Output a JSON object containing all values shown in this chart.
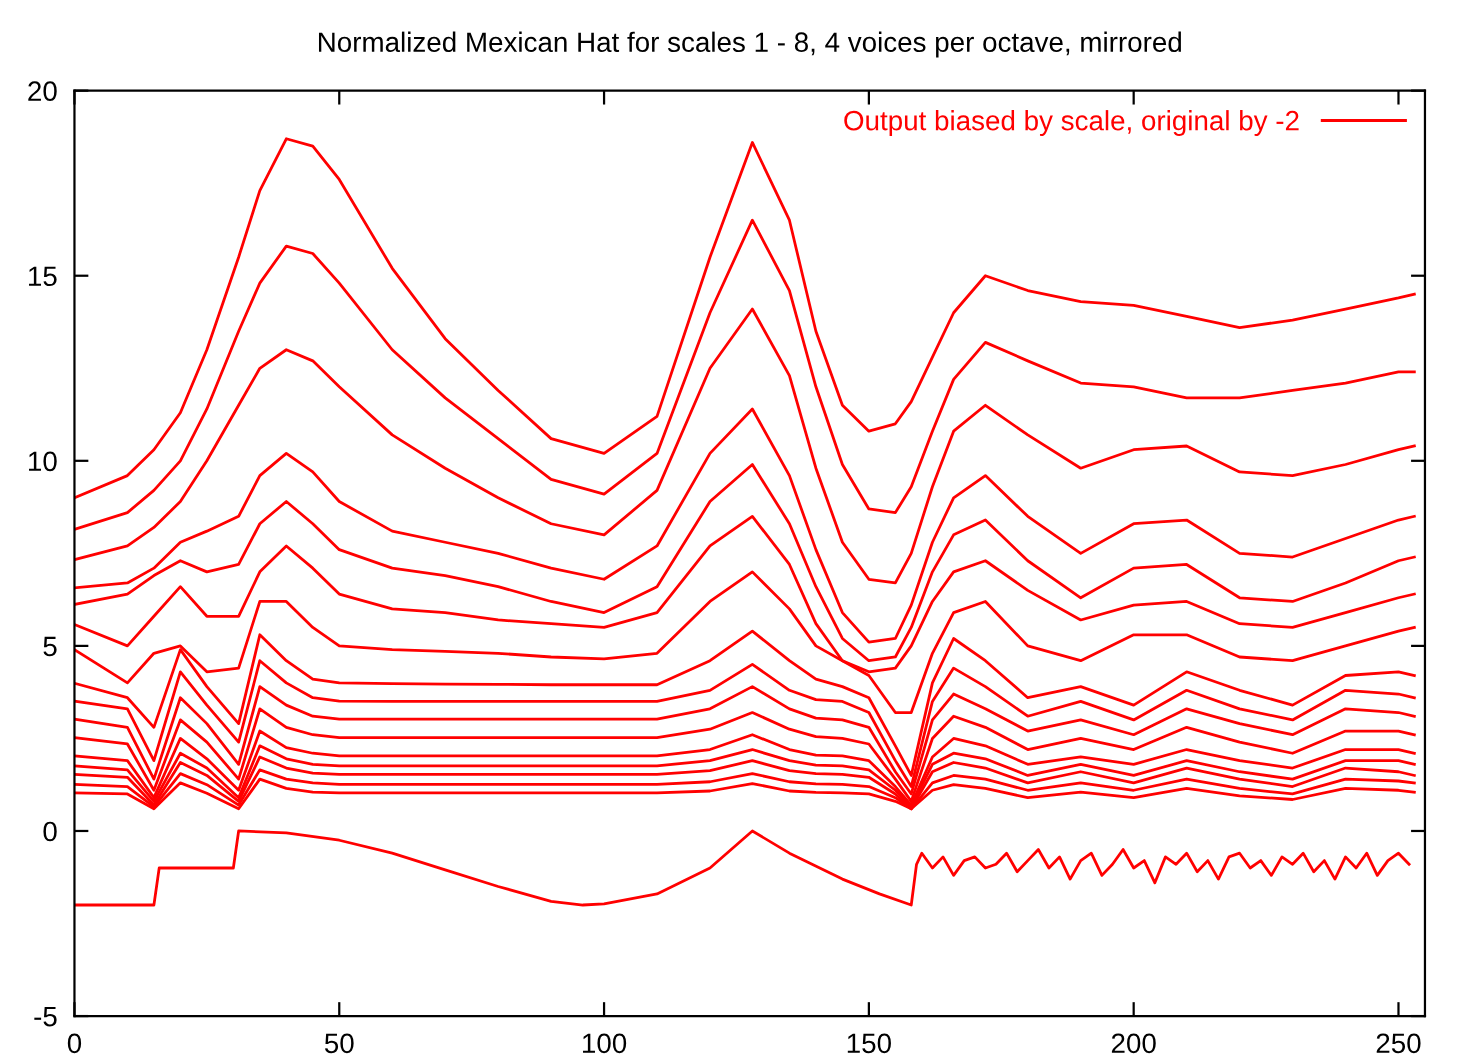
{
  "chart_data": {
    "type": "line",
    "title": "Normalized Mexican Hat for scales 1 - 8, 4 voices per octave, mirrored",
    "x": [
      0,
      10,
      15,
      20,
      25,
      31,
      35,
      40,
      45,
      50,
      60,
      70,
      80,
      90,
      100,
      110,
      120,
      128,
      135,
      140,
      145,
      150,
      155,
      158,
      162,
      166,
      172,
      180,
      190,
      200,
      210,
      220,
      230,
      240,
      250,
      253
    ],
    "xlim": [
      0,
      255
    ],
    "xticks": [
      0,
      50,
      100,
      150,
      200,
      250
    ],
    "ylim": [
      -5,
      20
    ],
    "yticks": [
      -5,
      0,
      5,
      10,
      15,
      20
    ],
    "grid": false,
    "legend": "top right",
    "line_style": "solid",
    "series": [
      {
        "name": "Output biased by scale, original by -2",
        "color": "#ff0000",
        "values": [
          9.0,
          9.6,
          10.3,
          11.3,
          13.0,
          15.5,
          17.3,
          18.7,
          18.5,
          17.6,
          15.2,
          13.3,
          11.9,
          10.6,
          10.2,
          11.2,
          15.5,
          18.6,
          16.5,
          13.5,
          11.5,
          10.8,
          11.0,
          11.6,
          12.8,
          14.0,
          15.0,
          14.6,
          14.3,
          14.2,
          13.9,
          13.6,
          13.8,
          14.1,
          14.4,
          14.5
        ]
      },
      {
        "color": "#ff0000",
        "values": [
          8.15,
          8.6,
          9.2,
          10.0,
          11.4,
          13.5,
          14.8,
          15.8,
          15.6,
          14.8,
          13.0,
          11.7,
          10.6,
          9.5,
          9.1,
          10.2,
          14.0,
          16.5,
          14.6,
          12.0,
          9.9,
          8.7,
          8.6,
          9.3,
          10.8,
          12.2,
          13.2,
          12.7,
          12.1,
          12.0,
          11.7,
          11.7,
          11.9,
          12.1,
          12.4,
          12.4
        ]
      },
      {
        "color": "#ff0000",
        "values": [
          7.33,
          7.7,
          8.2,
          8.9,
          10.0,
          11.5,
          12.5,
          13.0,
          12.7,
          12.0,
          10.7,
          9.8,
          9.0,
          8.3,
          8.0,
          9.2,
          12.5,
          14.1,
          12.3,
          9.8,
          7.8,
          6.8,
          6.7,
          7.5,
          9.3,
          10.8,
          11.5,
          10.7,
          9.8,
          10.3,
          10.4,
          9.7,
          9.6,
          9.9,
          10.3,
          10.4
        ]
      },
      {
        "color": "#ff0000",
        "values": [
          6.57,
          6.7,
          7.1,
          7.8,
          8.1,
          8.5,
          9.6,
          10.2,
          9.7,
          8.9,
          8.1,
          7.8,
          7.5,
          7.1,
          6.8,
          7.7,
          10.2,
          11.4,
          9.6,
          7.6,
          5.9,
          5.1,
          5.2,
          6.1,
          7.8,
          9.0,
          9.6,
          8.5,
          7.5,
          8.3,
          8.4,
          7.5,
          7.4,
          7.9,
          8.4,
          8.5
        ]
      },
      {
        "color": "#ff0000",
        "values": [
          6.12,
          6.4,
          6.9,
          7.3,
          7.0,
          7.2,
          8.3,
          8.9,
          8.3,
          7.6,
          7.1,
          6.9,
          6.6,
          6.2,
          5.9,
          6.6,
          8.9,
          9.9,
          8.3,
          6.6,
          5.2,
          4.6,
          4.7,
          5.5,
          7.0,
          8.0,
          8.4,
          7.3,
          6.3,
          7.1,
          7.2,
          6.3,
          6.2,
          6.7,
          7.3,
          7.4
        ]
      },
      {
        "color": "#ff0000",
        "values": [
          5.58,
          5.0,
          5.8,
          6.6,
          5.8,
          5.8,
          7.0,
          7.7,
          7.1,
          6.4,
          6.0,
          5.9,
          5.7,
          5.6,
          5.5,
          5.9,
          7.7,
          8.5,
          7.2,
          5.6,
          4.6,
          4.3,
          4.4,
          5.0,
          6.2,
          7.0,
          7.3,
          6.5,
          5.7,
          6.1,
          6.2,
          5.6,
          5.5,
          5.9,
          6.3,
          6.4
        ]
      },
      {
        "color": "#ff0000",
        "values": [
          4.9,
          4.0,
          4.8,
          5.0,
          4.3,
          4.4,
          6.2,
          6.2,
          5.5,
          5.0,
          4.9,
          4.85,
          4.8,
          4.7,
          4.65,
          4.8,
          6.2,
          7.0,
          6.0,
          5.0,
          4.6,
          4.2,
          3.2,
          3.2,
          4.8,
          5.9,
          6.2,
          5.0,
          4.6,
          5.3,
          5.3,
          4.7,
          4.6,
          5.0,
          5.4,
          5.5
        ]
      },
      {
        "color": "#ff0000",
        "values": [
          3.99,
          3.6,
          2.8,
          4.9,
          3.9,
          2.9,
          5.3,
          4.6,
          4.1,
          4.0,
          3.98,
          3.97,
          3.96,
          3.95,
          3.95,
          3.95,
          4.6,
          5.4,
          4.6,
          4.1,
          3.9,
          3.6,
          2.3,
          1.5,
          4.0,
          5.2,
          4.6,
          3.6,
          3.9,
          3.4,
          4.3,
          3.8,
          3.4,
          4.2,
          4.3,
          4.2
        ]
      },
      {
        "color": "#ff0000",
        "values": [
          3.51,
          3.3,
          1.9,
          4.3,
          3.4,
          2.4,
          4.6,
          4.0,
          3.6,
          3.51,
          3.5,
          3.5,
          3.5,
          3.5,
          3.5,
          3.5,
          3.8,
          4.5,
          3.8,
          3.55,
          3.5,
          3.2,
          1.9,
          1.2,
          3.5,
          4.4,
          3.9,
          3.1,
          3.5,
          3.0,
          3.8,
          3.3,
          3.0,
          3.8,
          3.7,
          3.6
        ]
      },
      {
        "color": "#ff0000",
        "values": [
          3.02,
          2.8,
          1.4,
          3.6,
          2.9,
          1.8,
          3.9,
          3.4,
          3.1,
          3.02,
          3.02,
          3.02,
          3.02,
          3.02,
          3.02,
          3.02,
          3.3,
          3.9,
          3.3,
          3.05,
          3.0,
          2.8,
          1.6,
          1.0,
          3.0,
          3.7,
          3.3,
          2.7,
          3.0,
          2.6,
          3.3,
          2.9,
          2.6,
          3.3,
          3.2,
          3.1
        ]
      },
      {
        "color": "#ff0000",
        "values": [
          2.52,
          2.35,
          1.1,
          3.0,
          2.4,
          1.4,
          3.3,
          2.8,
          2.6,
          2.52,
          2.52,
          2.52,
          2.52,
          2.52,
          2.52,
          2.52,
          2.75,
          3.2,
          2.75,
          2.55,
          2.5,
          2.35,
          1.4,
          0.8,
          2.5,
          3.1,
          2.8,
          2.2,
          2.5,
          2.2,
          2.8,
          2.4,
          2.1,
          2.7,
          2.7,
          2.6
        ]
      },
      {
        "color": "#ff0000",
        "values": [
          2.03,
          1.9,
          0.9,
          2.5,
          1.95,
          1.1,
          2.7,
          2.25,
          2.1,
          2.03,
          2.03,
          2.03,
          2.03,
          2.03,
          2.03,
          2.03,
          2.2,
          2.6,
          2.2,
          2.05,
          2.03,
          1.9,
          1.2,
          0.7,
          2.0,
          2.5,
          2.3,
          1.8,
          2.0,
          1.8,
          2.2,
          1.9,
          1.7,
          2.2,
          2.2,
          2.1
        ]
      },
      {
        "color": "#ff0000",
        "values": [
          1.76,
          1.65,
          0.8,
          2.1,
          1.7,
          0.9,
          2.3,
          1.95,
          1.8,
          1.76,
          1.76,
          1.76,
          1.76,
          1.76,
          1.76,
          1.76,
          1.9,
          2.2,
          1.9,
          1.78,
          1.76,
          1.65,
          1.1,
          0.65,
          1.8,
          2.1,
          1.95,
          1.5,
          1.8,
          1.5,
          1.9,
          1.6,
          1.4,
          1.9,
          1.9,
          1.8
        ]
      },
      {
        "color": "#ff0000",
        "values": [
          1.53,
          1.45,
          0.7,
          1.85,
          1.5,
          0.8,
          2.0,
          1.7,
          1.56,
          1.53,
          1.53,
          1.53,
          1.53,
          1.53,
          1.53,
          1.53,
          1.63,
          1.9,
          1.63,
          1.55,
          1.53,
          1.45,
          1.0,
          0.6,
          1.6,
          1.85,
          1.7,
          1.3,
          1.6,
          1.3,
          1.7,
          1.4,
          1.2,
          1.7,
          1.6,
          1.5
        ]
      },
      {
        "color": "#ff0000",
        "values": [
          1.26,
          1.2,
          0.65,
          1.55,
          1.25,
          0.7,
          1.65,
          1.4,
          1.3,
          1.26,
          1.26,
          1.26,
          1.26,
          1.26,
          1.26,
          1.26,
          1.33,
          1.55,
          1.33,
          1.27,
          1.26,
          1.2,
          0.9,
          0.6,
          1.3,
          1.5,
          1.4,
          1.1,
          1.3,
          1.1,
          1.4,
          1.15,
          1.0,
          1.4,
          1.35,
          1.3
        ]
      },
      {
        "color": "#ff0000",
        "values": [
          1.03,
          1.0,
          0.6,
          1.3,
          1.02,
          0.6,
          1.4,
          1.15,
          1.05,
          1.03,
          1.03,
          1.03,
          1.03,
          1.03,
          1.03,
          1.03,
          1.08,
          1.28,
          1.08,
          1.04,
          1.03,
          1.0,
          0.8,
          0.6,
          1.1,
          1.25,
          1.15,
          0.9,
          1.05,
          0.9,
          1.15,
          0.95,
          0.85,
          1.15,
          1.1,
          1.05
        ]
      },
      {
        "color": "#ff0000",
        "x": [
          0,
          15,
          16,
          30,
          31,
          40,
          50,
          60,
          70,
          80,
          90,
          96,
          100,
          110,
          120,
          128,
          135,
          145,
          152,
          158,
          159,
          160,
          162,
          164,
          166,
          168,
          170,
          172,
          174,
          176,
          178,
          180,
          182,
          184,
          186,
          188,
          190,
          192,
          194,
          196,
          198,
          200,
          202,
          204,
          206,
          208,
          210,
          212,
          214,
          216,
          218,
          220,
          222,
          224,
          226,
          228,
          230,
          232,
          234,
          236,
          238,
          240,
          242,
          244,
          246,
          248,
          250,
          252
        ],
        "values": [
          -2,
          -2,
          -1,
          -1,
          0,
          -0.05,
          -0.25,
          -0.6,
          -1.05,
          -1.5,
          -1.9,
          -2.0,
          -1.97,
          -1.7,
          -1.0,
          0.0,
          -0.6,
          -1.3,
          -1.7,
          -2.0,
          -0.9,
          -0.6,
          -1.0,
          -0.7,
          -1.2,
          -0.8,
          -0.7,
          -1.0,
          -0.9,
          -0.6,
          -1.1,
          -0.8,
          -0.5,
          -1.0,
          -0.7,
          -1.3,
          -0.8,
          -0.6,
          -1.2,
          -0.9,
          -0.5,
          -1.0,
          -0.8,
          -1.4,
          -0.7,
          -0.9,
          -0.6,
          -1.1,
          -0.8,
          -1.3,
          -0.7,
          -0.6,
          -1.0,
          -0.8,
          -1.2,
          -0.7,
          -0.9,
          -0.6,
          -1.1,
          -0.8,
          -1.3,
          -0.7,
          -1.0,
          -0.6,
          -1.2,
          -0.8,
          -0.6,
          -0.9
        ]
      }
    ]
  }
}
